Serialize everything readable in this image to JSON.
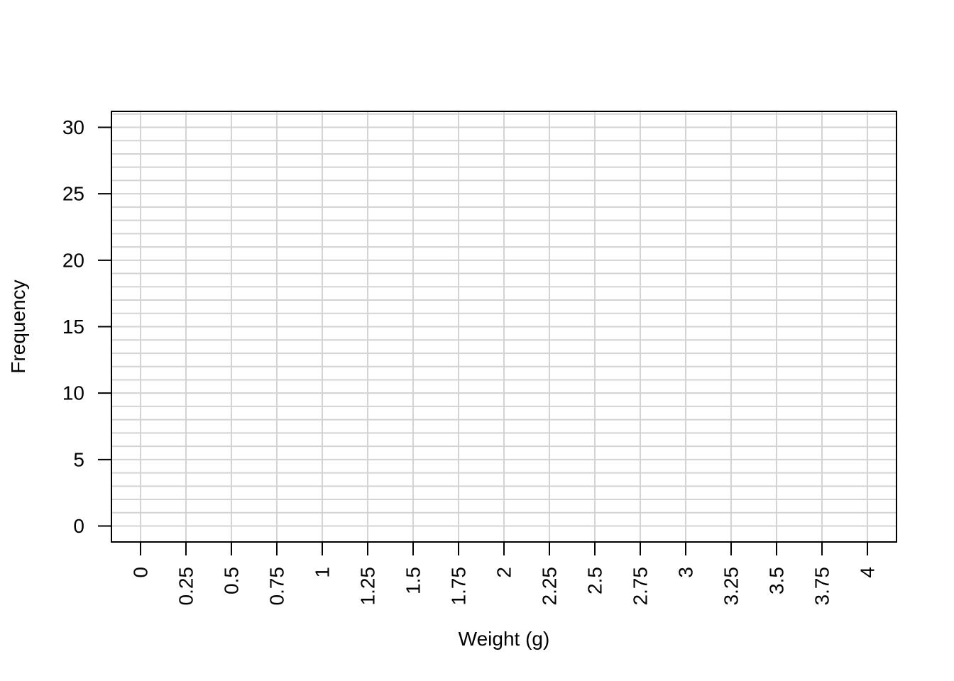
{
  "chart_data": {
    "type": "bar",
    "title": "",
    "xlabel": "Weight (g)",
    "ylabel": "Frequency",
    "xlim": [
      -0.16,
      4.16
    ],
    "ylim": [
      -1.2,
      31.2
    ],
    "x_ticks": [
      0,
      0.25,
      0.5,
      0.75,
      1,
      1.25,
      1.5,
      1.75,
      2,
      2.25,
      2.5,
      2.75,
      3,
      3.25,
      3.5,
      3.75,
      4
    ],
    "x_tick_labels": [
      "0",
      "0.25",
      "0.5",
      "0.75",
      "1",
      "1.25",
      "1.5",
      "1.75",
      "2",
      "2.25",
      "2.5",
      "2.75",
      "3",
      "3.25",
      "3.5",
      "3.75",
      "4"
    ],
    "y_ticks": [
      0,
      5,
      10,
      15,
      20,
      25,
      30
    ],
    "y_tick_labels": [
      "0",
      "5",
      "10",
      "15",
      "20",
      "25",
      "30"
    ],
    "y_minor_gridline_step": 1,
    "x_gridline_step": 0.25,
    "grid": true,
    "grid_color": "#d3d3d3",
    "series": [],
    "categories": [],
    "values": []
  }
}
